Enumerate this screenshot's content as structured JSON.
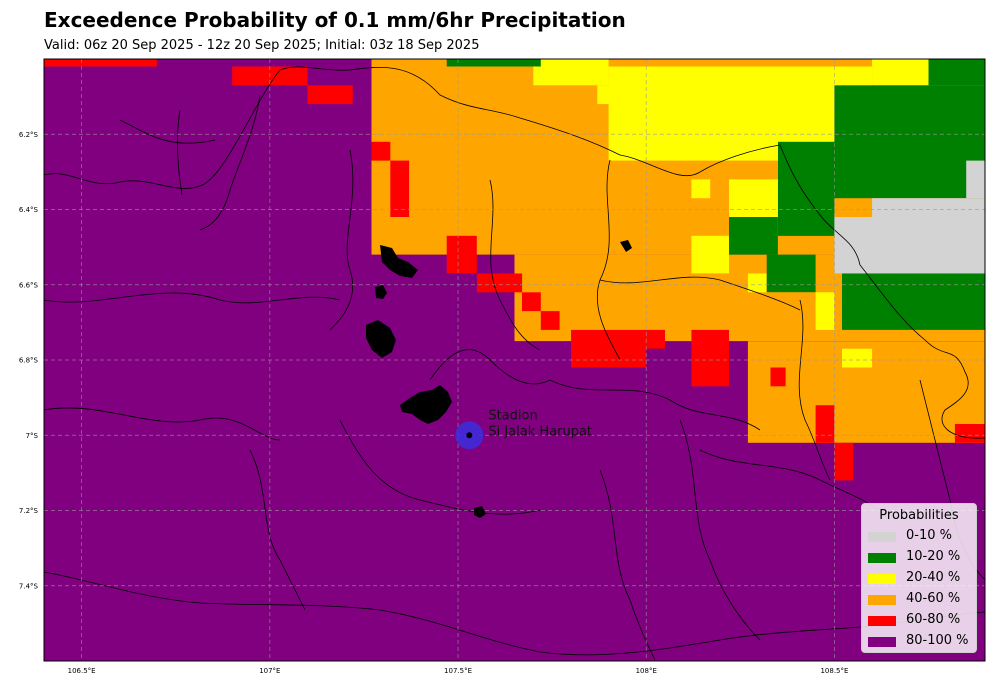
{
  "header": {
    "title": "Exceedence Probability of 0.1 mm/6hr Precipitation",
    "subtitle": "Valid: 06z 20 Sep 2025 - 12z 20 Sep 2025; Initial: 03z 18 Sep 2025"
  },
  "map": {
    "lon_range": [
      106.4,
      108.9
    ],
    "lat_range": [
      -7.6,
      -6.0
    ],
    "x_ticks": [
      "106.5°E",
      "107°E",
      "107.5°E",
      "108°E",
      "108.5°E"
    ],
    "y_ticks": [
      "6.2°S",
      "6.4°S",
      "6.6°S",
      "6.8°S",
      "7°S",
      "7.2°S",
      "7.4°S"
    ],
    "gridlines": true,
    "background_category": "80-100 %"
  },
  "station": {
    "name_line1": "Stadion",
    "name_line2": "Si Jalak Harupat",
    "lon": 107.53,
    "lat": -7.0,
    "marker_color": "#3b2ee0"
  },
  "legend": {
    "title": "Probabilities",
    "placement": "bottom-right",
    "items": [
      {
        "label": "0-10 %",
        "color": "#d3d3d3"
      },
      {
        "label": "10-20 %",
        "color": "#008000"
      },
      {
        "label": "20-40 %",
        "color": "#ffff00"
      },
      {
        "label": "40-60 %",
        "color": "#ffa500"
      },
      {
        "label": "60-80 %",
        "color": "#ff0000"
      },
      {
        "label": "80-100 %",
        "color": "#800080"
      }
    ]
  },
  "chart_data": {
    "type": "heatmap",
    "title": "Exceedence Probability of 0.1 mm/6hr Precipitation",
    "subtitle": "Valid: 06z 20 Sep 2025 - 12z 20 Sep 2025; Initial: 03z 18 Sep 2025",
    "xlabel": "",
    "ylabel": "",
    "xlim": [
      106.4,
      108.9
    ],
    "ylim": [
      -7.6,
      -6.0
    ],
    "categories": [
      "0-10 %",
      "10-20 %",
      "20-40 %",
      "40-60 %",
      "60-80 %",
      "80-100 %"
    ],
    "dominant_category": "80-100 %",
    "regions": [
      {
        "category": "80-100 %",
        "lon": [
          106.4,
          108.9
        ],
        "lat": [
          -7.6,
          -6.0
        ]
      },
      {
        "category": "40-60 %",
        "lon": [
          107.27,
          108.9
        ],
        "lat": [
          -6.52,
          -6.0
        ]
      },
      {
        "category": "40-60 %",
        "lon": [
          107.65,
          108.9
        ],
        "lat": [
          -6.75,
          -6.52
        ]
      },
      {
        "category": "40-60 %",
        "lon": [
          108.27,
          108.9
        ],
        "lat": [
          -7.02,
          -6.75
        ]
      },
      {
        "category": "60-80 %",
        "lon": [
          106.4,
          106.7
        ],
        "lat": [
          -6.02,
          -6.0
        ]
      },
      {
        "category": "60-80 %",
        "lon": [
          106.9,
          107.1
        ],
        "lat": [
          -6.07,
          -6.02
        ]
      },
      {
        "category": "60-80 %",
        "lon": [
          107.1,
          107.22
        ],
        "lat": [
          -6.12,
          -6.07
        ]
      },
      {
        "category": "60-80 %",
        "lon": [
          107.27,
          107.32
        ],
        "lat": [
          -6.27,
          -6.22
        ]
      },
      {
        "category": "60-80 %",
        "lon": [
          107.32,
          107.37
        ],
        "lat": [
          -6.42,
          -6.27
        ]
      },
      {
        "category": "60-80 %",
        "lon": [
          107.47,
          107.55
        ],
        "lat": [
          -6.57,
          -6.47
        ]
      },
      {
        "category": "60-80 %",
        "lon": [
          107.55,
          107.67
        ],
        "lat": [
          -6.62,
          -6.57
        ]
      },
      {
        "category": "60-80 %",
        "lon": [
          107.67,
          107.72
        ],
        "lat": [
          -6.67,
          -6.62
        ]
      },
      {
        "category": "60-80 %",
        "lon": [
          107.72,
          107.77
        ],
        "lat": [
          -6.72,
          -6.67
        ]
      },
      {
        "category": "60-80 %",
        "lon": [
          107.8,
          108.0
        ],
        "lat": [
          -6.82,
          -6.72
        ]
      },
      {
        "category": "60-80 %",
        "lon": [
          108.0,
          108.05
        ],
        "lat": [
          -6.77,
          -6.72
        ]
      },
      {
        "category": "60-80 %",
        "lon": [
          108.12,
          108.22
        ],
        "lat": [
          -6.87,
          -6.72
        ]
      },
      {
        "category": "60-80 %",
        "lon": [
          108.33,
          108.37
        ],
        "lat": [
          -6.87,
          -6.82
        ]
      },
      {
        "category": "60-80 %",
        "lon": [
          108.45,
          108.5
        ],
        "lat": [
          -7.02,
          -6.92
        ]
      },
      {
        "category": "60-80 %",
        "lon": [
          108.5,
          108.55
        ],
        "lat": [
          -7.12,
          -7.02
        ]
      },
      {
        "category": "60-80 %",
        "lon": [
          108.82,
          108.9
        ],
        "lat": [
          -7.02,
          -6.97
        ]
      },
      {
        "category": "20-40 %",
        "lon": [
          107.9,
          108.6
        ],
        "lat": [
          -6.27,
          -6.02
        ]
      },
      {
        "category": "20-40 %",
        "lon": [
          108.6,
          108.75
        ],
        "lat": [
          -6.07,
          -6.0
        ]
      },
      {
        "category": "20-40 %",
        "lon": [
          107.7,
          107.9
        ],
        "lat": [
          -6.07,
          -6.0
        ]
      },
      {
        "category": "20-40 %",
        "lon": [
          107.87,
          107.98
        ],
        "lat": [
          -6.12,
          -6.07
        ]
      },
      {
        "category": "20-40 %",
        "lon": [
          108.12,
          108.17
        ],
        "lat": [
          -6.37,
          -6.32
        ]
      },
      {
        "category": "20-40 %",
        "lon": [
          108.22,
          108.35
        ],
        "lat": [
          -6.47,
          -6.32
        ]
      },
      {
        "category": "20-40 %",
        "lon": [
          108.12,
          108.22
        ],
        "lat": [
          -6.57,
          -6.47
        ]
      },
      {
        "category": "20-40 %",
        "lon": [
          108.27,
          108.32
        ],
        "lat": [
          -6.62,
          -6.57
        ]
      },
      {
        "category": "20-40 %",
        "lon": [
          108.45,
          108.5
        ],
        "lat": [
          -6.72,
          -6.62
        ]
      },
      {
        "category": "20-40 %",
        "lon": [
          108.52,
          108.6
        ],
        "lat": [
          -6.82,
          -6.77
        ]
      },
      {
        "category": "10-20 %",
        "lon": [
          107.47,
          107.72
        ],
        "lat": [
          -6.02,
          -6.0
        ]
      },
      {
        "category": "10-20 %",
        "lon": [
          108.75,
          108.9
        ],
        "lat": [
          -6.07,
          -6.0
        ]
      },
      {
        "category": "10-20 %",
        "lon": [
          108.5,
          108.9
        ],
        "lat": [
          -6.37,
          -6.07
        ]
      },
      {
        "category": "10-20 %",
        "lon": [
          108.35,
          108.5
        ],
        "lat": [
          -6.47,
          -6.22
        ]
      },
      {
        "category": "10-20 %",
        "lon": [
          108.22,
          108.35
        ],
        "lat": [
          -6.52,
          -6.42
        ]
      },
      {
        "category": "10-20 %",
        "lon": [
          108.32,
          108.45
        ],
        "lat": [
          -6.62,
          -6.52
        ]
      },
      {
        "category": "10-20 %",
        "lon": [
          108.52,
          108.9
        ],
        "lat": [
          -6.72,
          -6.57
        ]
      },
      {
        "category": "0-10 %",
        "lon": [
          108.5,
          108.9
        ],
        "lat": [
          -6.57,
          -6.42
        ]
      },
      {
        "category": "0-10 %",
        "lon": [
          108.6,
          108.9
        ],
        "lat": [
          -6.42,
          -6.37
        ]
      },
      {
        "category": "0-10 %",
        "lon": [
          108.85,
          108.9
        ],
        "lat": [
          -6.37,
          -6.27
        ]
      }
    ]
  }
}
